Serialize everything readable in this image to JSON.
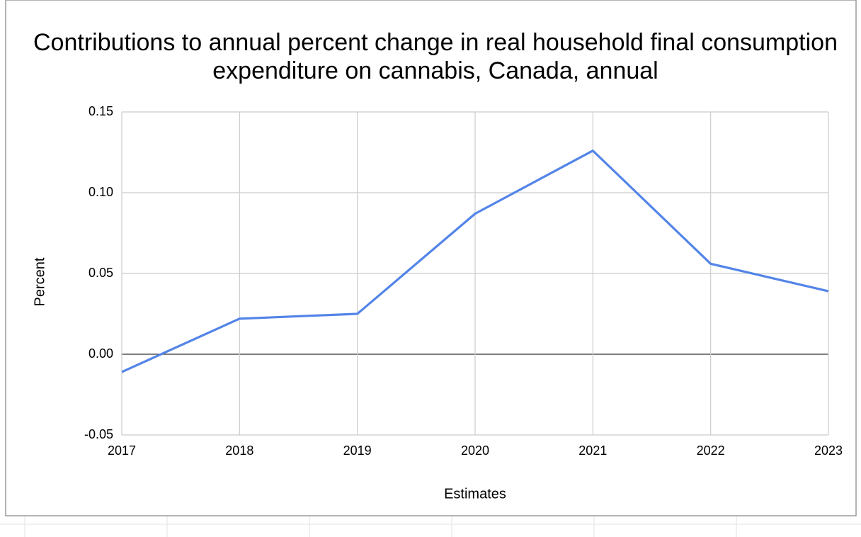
{
  "chart_data": {
    "type": "line",
    "title": "Contributions to annual percent change in real household final consumption expenditure on cannabis, Canada, annual",
    "x_label": "Estimates",
    "y_label": "Percent",
    "x": [
      2017,
      2018,
      2019,
      2020,
      2021,
      2022,
      2023
    ],
    "series": [
      {
        "name": "Percent",
        "color": "#5384e8",
        "values": [
          -0.011,
          0.022,
          0.025,
          0.087,
          0.126,
          0.056,
          0.039
        ]
      }
    ],
    "xlim": [
      2017,
      2023
    ],
    "xticks": [
      2017,
      2018,
      2019,
      2020,
      2021,
      2022,
      2023
    ],
    "ylim": [
      -0.05,
      0.15
    ],
    "yticks": [
      -0.05,
      {
        "value": 0,
        "label": "0.00"
      },
      0.05,
      {
        "value": 0.1,
        "label": "0.10"
      },
      0.15
    ],
    "grid": true
  }
}
